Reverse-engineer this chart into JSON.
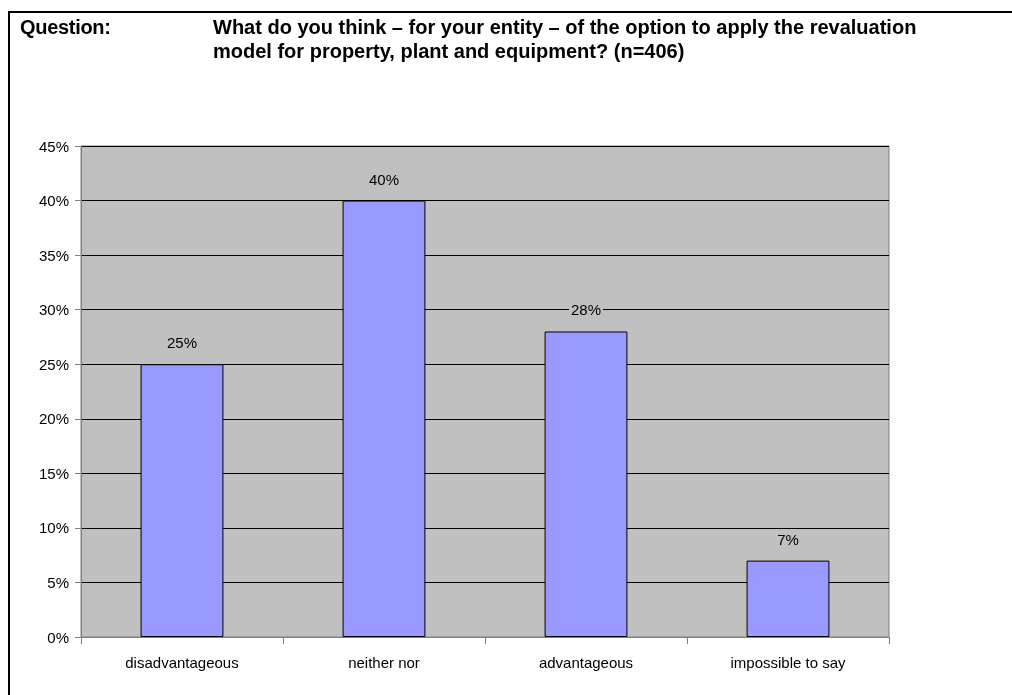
{
  "chart_data": {
    "type": "bar",
    "title": "Question:",
    "subtitle": "What do you think – for your entity – of the option to apply the revaluation model for property, plant and equipment? (n=406)",
    "categories": [
      "disadvantageous",
      "neither nor",
      "advantageous",
      "impossible to say"
    ],
    "values": [
      25,
      40,
      28,
      7
    ],
    "value_labels": [
      "25%",
      "40%",
      "28%",
      "7%"
    ],
    "color": "#9999ff",
    "ylim": [
      0,
      45
    ],
    "yticks": [
      {
        "value": 0,
        "label": "0%"
      },
      {
        "value": 5,
        "label": "5%"
      },
      {
        "value": 10,
        "label": "10%"
      },
      {
        "value": 15,
        "label": "15%"
      },
      {
        "value": 20,
        "label": "20%"
      },
      {
        "value": 25,
        "label": "25%"
      },
      {
        "value": 30,
        "label": "30%"
      },
      {
        "value": 35,
        "label": "35%"
      },
      {
        "value": 40,
        "label": "40%"
      },
      {
        "value": 45,
        "label": "45%"
      }
    ],
    "grid": "y"
  }
}
